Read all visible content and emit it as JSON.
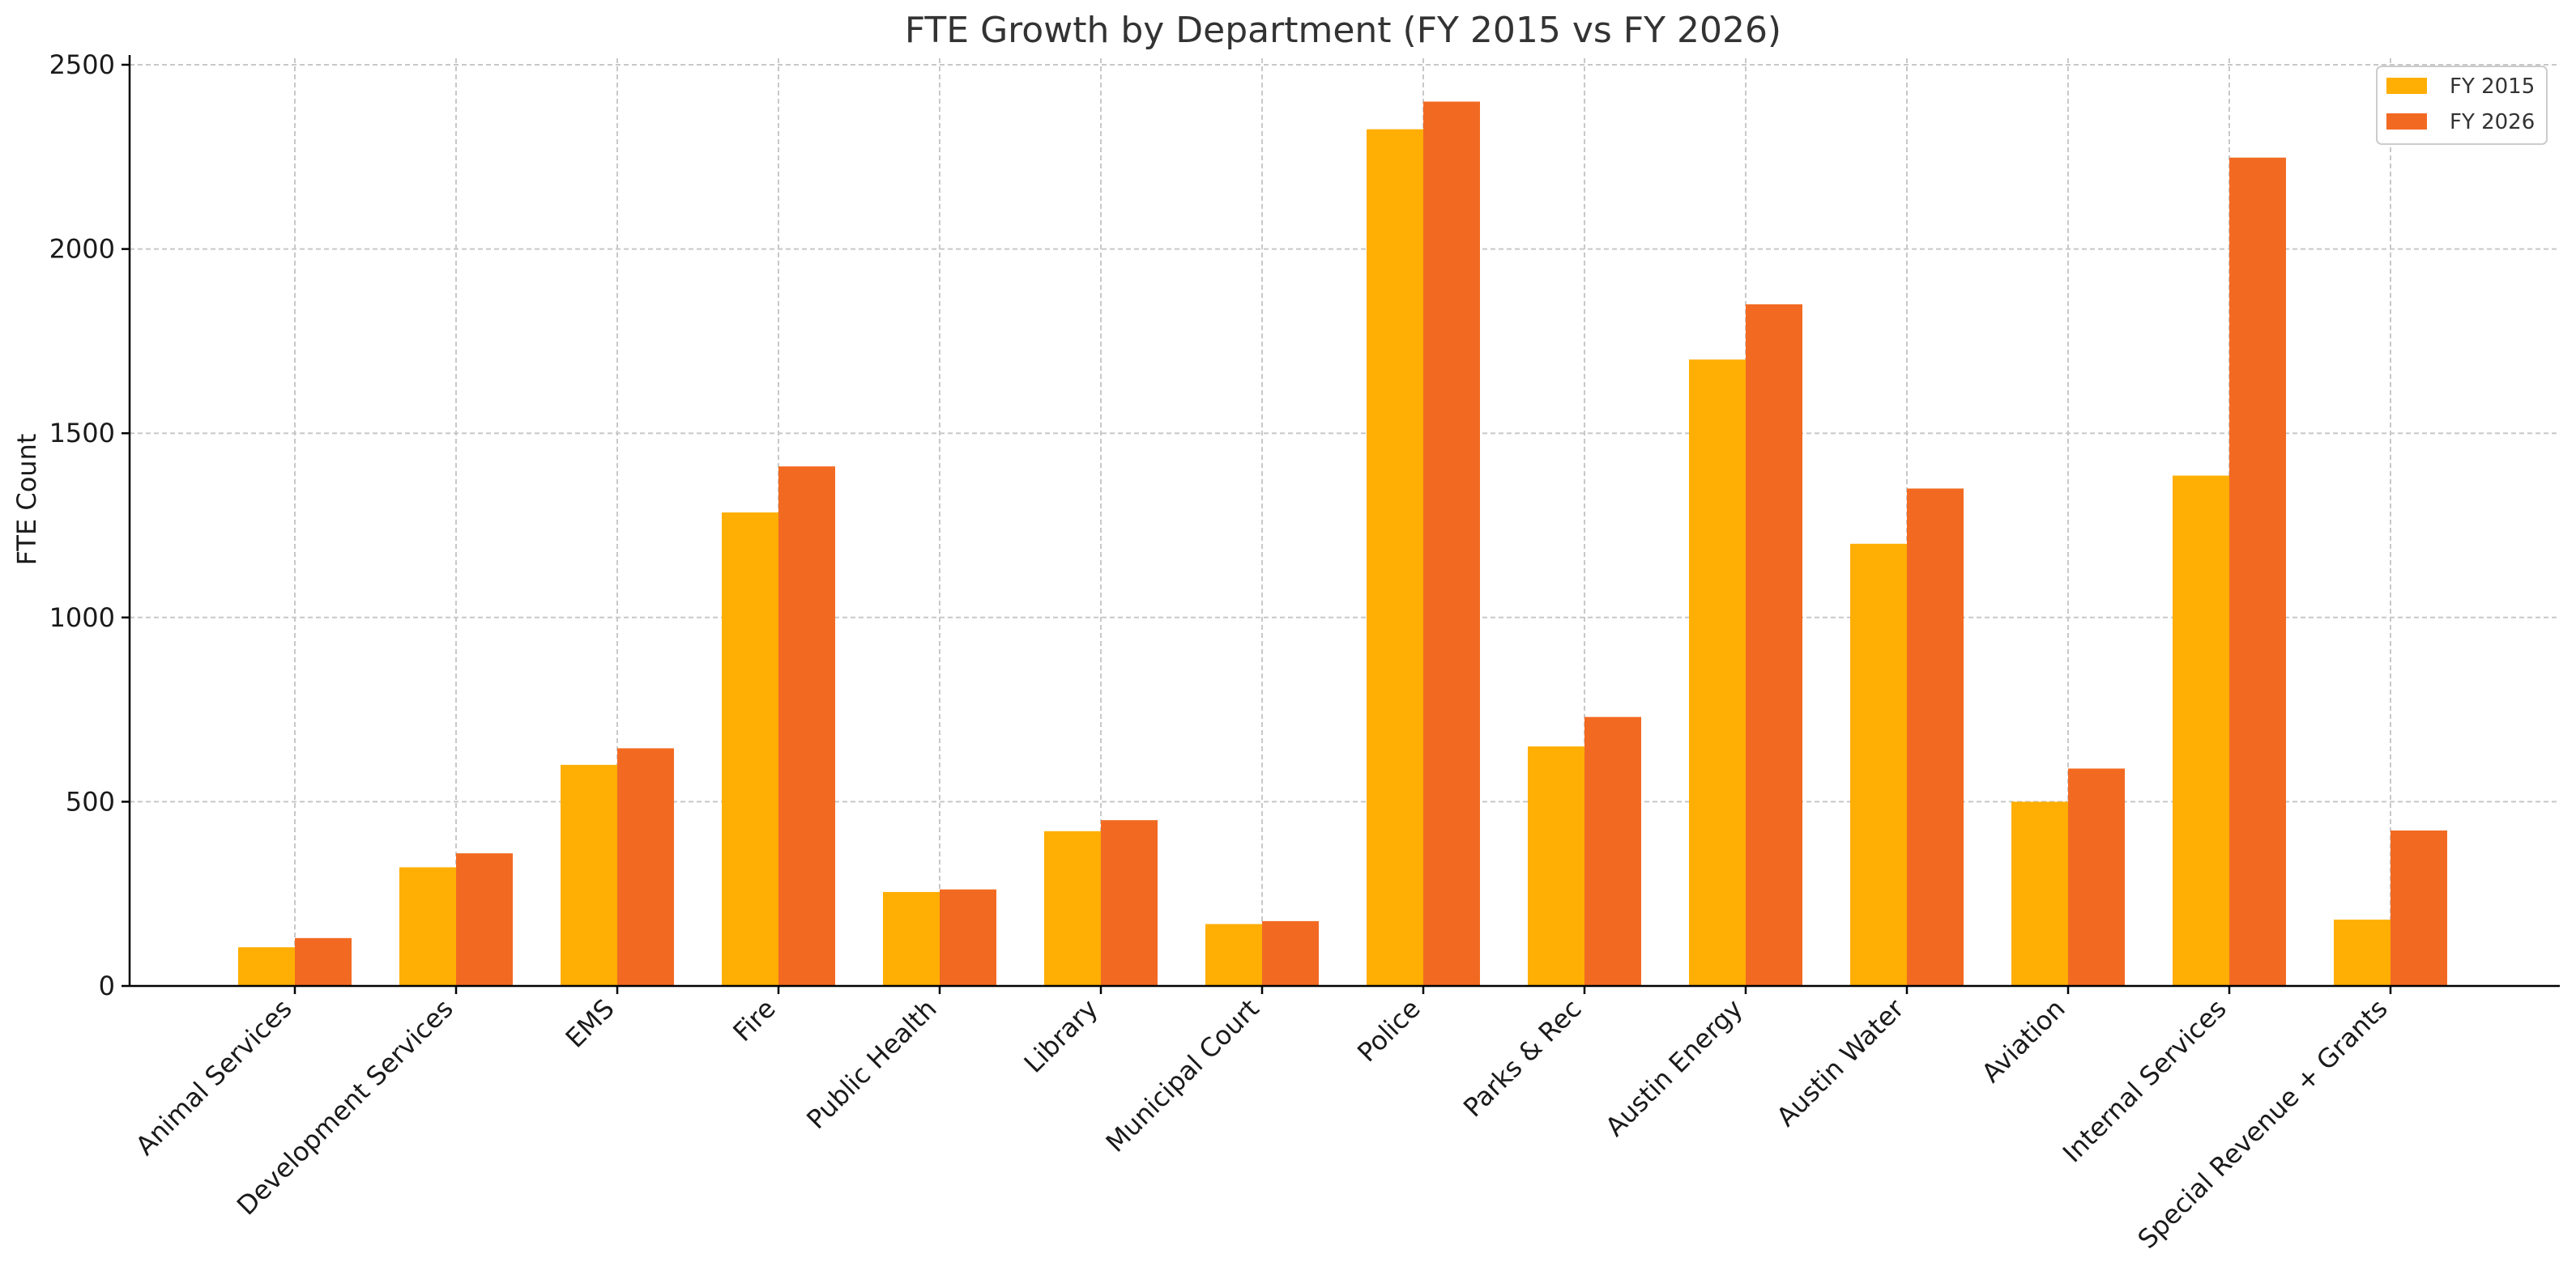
{
  "chart_data": {
    "type": "bar",
    "title": "FTE Growth by Department (FY 2015 vs FY 2026)",
    "xlabel": "",
    "ylabel": "FTE Count",
    "ylim": [
      0,
      2500
    ],
    "yticks": [
      0,
      500,
      1000,
      1500,
      2000,
      2500
    ],
    "grid": true,
    "legend_position": "top-right",
    "categories": [
      "Animal Services",
      "Development Services",
      "EMS",
      "Fire",
      "Public Health",
      "Library",
      "Municipal Court",
      "Police",
      "Parks & Rec",
      "Austin Energy",
      "Austin Water",
      "Aviation",
      "Internal Services",
      "Special Revenue + Grants"
    ],
    "series": [
      {
        "name": "FY 2015",
        "color": "#FFAE03",
        "values": [
          105,
          322,
          600,
          1285,
          255,
          420,
          168,
          2325,
          650,
          1700,
          1200,
          500,
          1385,
          180
        ]
      },
      {
        "name": "FY 2026",
        "color": "#F26A22",
        "values": [
          130,
          360,
          645,
          1410,
          262,
          450,
          176,
          2400,
          730,
          1850,
          1350,
          590,
          2248,
          422
        ]
      }
    ]
  }
}
